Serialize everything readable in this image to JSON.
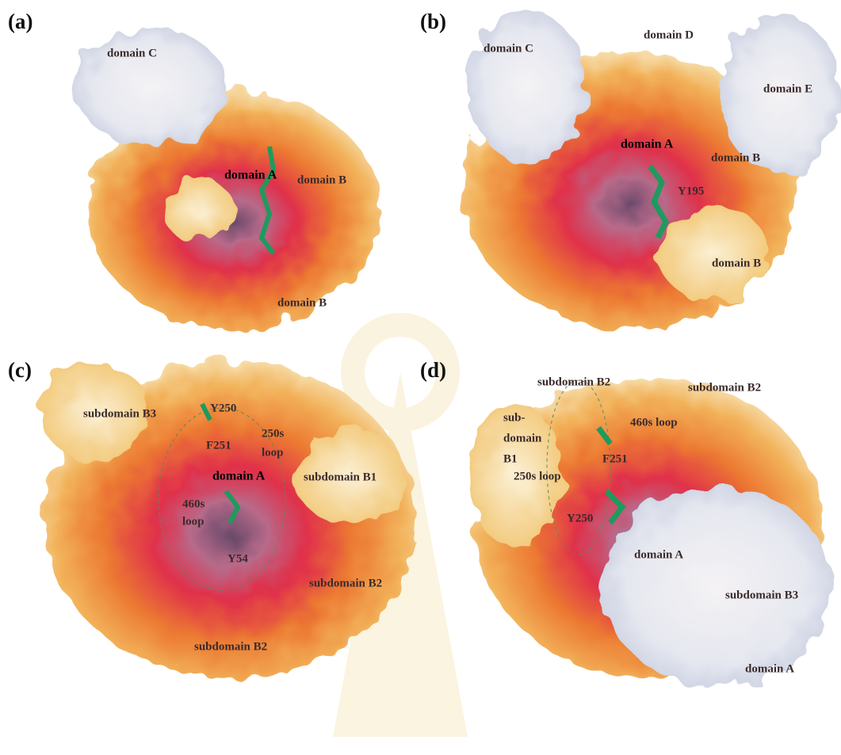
{
  "panels": [
    {
      "label": "(a)",
      "annotations": [
        "domain C",
        "domain A",
        "domain B",
        "domain B"
      ]
    },
    {
      "label": "(b)",
      "annotations": [
        "domain D",
        "domain C",
        "domain E",
        "domain A",
        "domain B",
        "Y195",
        "domain B"
      ]
    },
    {
      "label": "(c)",
      "annotations": [
        "subdomain B3",
        "Y250",
        "F251",
        "250s",
        "loop",
        "domain A",
        "subdomain B1",
        "460s",
        "loop",
        "Y54",
        "subdomain B2",
        "subdomain B2"
      ]
    },
    {
      "label": "(d)",
      "annotations": [
        "subdomain B2",
        "subdomain B2",
        "sub-",
        "domain",
        "B1",
        "460s loop",
        "F251",
        "250s loop",
        "Y250",
        "domain A",
        "subdomain B3",
        "domain A"
      ]
    }
  ]
}
